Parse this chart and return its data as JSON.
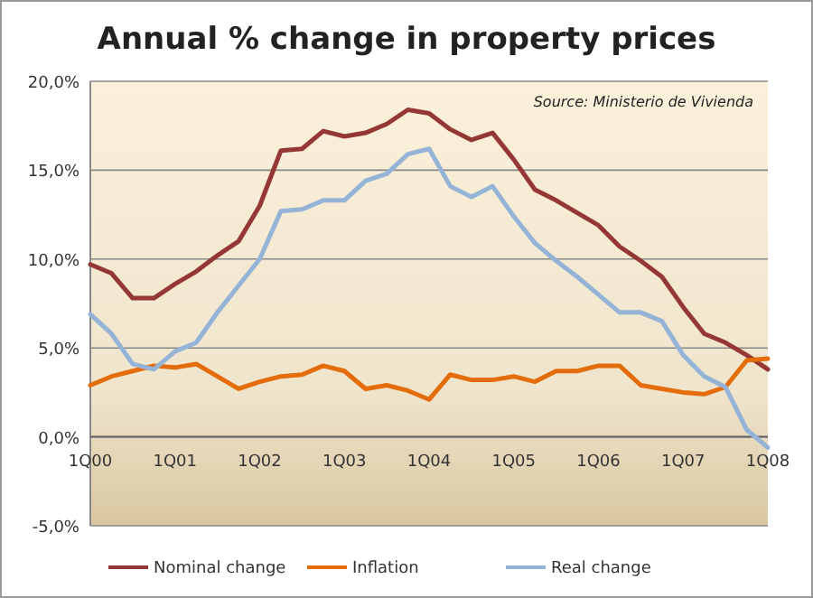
{
  "chart_data": {
    "type": "line",
    "title": "Annual % change in property prices",
    "annotations": [
      "Source: Ministerio de Vivienda"
    ],
    "categories": [
      "1Q00",
      null,
      null,
      null,
      "1Q01",
      null,
      null,
      null,
      "1Q02",
      null,
      null,
      null,
      "1Q03",
      null,
      null,
      null,
      "1Q04",
      null,
      null,
      null,
      "1Q05",
      null,
      null,
      null,
      "1Q06",
      null,
      null,
      null,
      "1Q07",
      null,
      null,
      null,
      "1Q08"
    ],
    "series": [
      {
        "name": "Nominal change",
        "color": "#953735",
        "values": [
          9.7,
          9.2,
          7.8,
          7.8,
          8.6,
          9.3,
          10.2,
          11.0,
          13.0,
          16.1,
          16.2,
          17.2,
          16.9,
          17.1,
          17.6,
          18.4,
          18.2,
          17.3,
          16.7,
          17.1,
          15.6,
          13.9,
          13.3,
          12.6,
          11.9,
          10.7,
          9.9,
          9.0,
          7.3,
          5.8,
          5.3,
          4.6,
          3.8
        ]
      },
      {
        "name": "Inflation",
        "color": "#e46c0a",
        "values": [
          2.9,
          3.4,
          3.7,
          4.0,
          3.9,
          4.1,
          3.4,
          2.7,
          3.1,
          3.4,
          3.5,
          4.0,
          3.7,
          2.7,
          2.9,
          2.6,
          2.1,
          3.5,
          3.2,
          3.2,
          3.4,
          3.1,
          3.7,
          3.7,
          4.0,
          4.0,
          2.9,
          2.7,
          2.5,
          2.4,
          2.8,
          4.3,
          4.4
        ]
      },
      {
        "name": "Real change",
        "color": "#95b3d7",
        "values": [
          6.9,
          5.8,
          4.1,
          3.8,
          4.8,
          5.3,
          7.0,
          8.5,
          10.0,
          12.7,
          12.8,
          13.3,
          13.3,
          14.4,
          14.8,
          15.9,
          16.2,
          14.1,
          13.5,
          14.1,
          12.4,
          10.9,
          9.9,
          9.0,
          8.0,
          7.0,
          7.0,
          6.5,
          4.6,
          3.4,
          2.8,
          0.4,
          -0.6
        ]
      }
    ],
    "ylim": [
      -5,
      20
    ],
    "yticks": [
      {
        "value": -5,
        "label": "-5,0%"
      },
      {
        "value": 0,
        "label": "0,0%"
      },
      {
        "value": 5,
        "label": "5,0%"
      },
      {
        "value": 10,
        "label": "10,0%"
      },
      {
        "value": 15,
        "label": "15,0%"
      },
      {
        "value": 20,
        "label": "20,0%"
      }
    ],
    "grid": "y",
    "legend": "bottom",
    "marker": "none",
    "line_style": "solid"
  }
}
